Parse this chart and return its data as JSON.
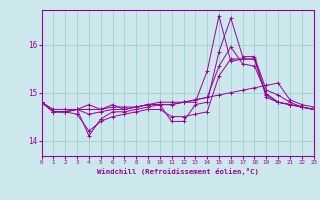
{
  "xlabel": "Windchill (Refroidissement éolien,°C)",
  "bg_color": "#cce8ec",
  "line_color": "#990099",
  "grid_color": "#99cccc",
  "x_ticks": [
    0,
    1,
    2,
    3,
    4,
    5,
    6,
    7,
    8,
    9,
    10,
    11,
    12,
    13,
    14,
    15,
    16,
    17,
    18,
    19,
    20,
    21,
    22,
    23
  ],
  "y_ticks": [
    14,
    15,
    16
  ],
  "ylim": [
    13.68,
    16.72
  ],
  "xlim": [
    0,
    23
  ],
  "series": [
    [
      14.8,
      14.65,
      14.65,
      14.65,
      14.65,
      14.65,
      14.7,
      14.7,
      14.7,
      14.75,
      14.75,
      14.75,
      14.8,
      14.85,
      14.9,
      14.95,
      15.0,
      15.05,
      15.1,
      15.15,
      15.2,
      14.85,
      14.75,
      14.7
    ],
    [
      14.8,
      14.6,
      14.6,
      14.65,
      14.55,
      14.6,
      14.65,
      14.65,
      14.7,
      14.75,
      14.75,
      14.4,
      14.4,
      14.75,
      14.8,
      15.85,
      16.55,
      15.75,
      15.75,
      15.05,
      14.95,
      14.8,
      14.7,
      14.65
    ],
    [
      14.8,
      14.6,
      14.6,
      14.65,
      14.1,
      14.45,
      14.6,
      14.6,
      14.65,
      14.7,
      14.75,
      14.75,
      14.8,
      14.8,
      15.45,
      16.6,
      15.65,
      15.7,
      15.7,
      14.95,
      14.8,
      14.75,
      14.7,
      14.65
    ],
    [
      14.8,
      14.6,
      14.6,
      14.55,
      14.2,
      14.4,
      14.5,
      14.55,
      14.6,
      14.65,
      14.65,
      14.5,
      14.5,
      14.55,
      14.6,
      15.35,
      15.7,
      15.7,
      15.7,
      14.9,
      14.8,
      14.75,
      14.7,
      14.65
    ],
    [
      14.8,
      14.6,
      14.6,
      14.65,
      14.75,
      14.65,
      14.75,
      14.65,
      14.7,
      14.75,
      14.8,
      14.8,
      14.8,
      14.85,
      14.9,
      15.55,
      15.95,
      15.6,
      15.55,
      14.98,
      14.8,
      14.75,
      14.7,
      14.65
    ]
  ]
}
